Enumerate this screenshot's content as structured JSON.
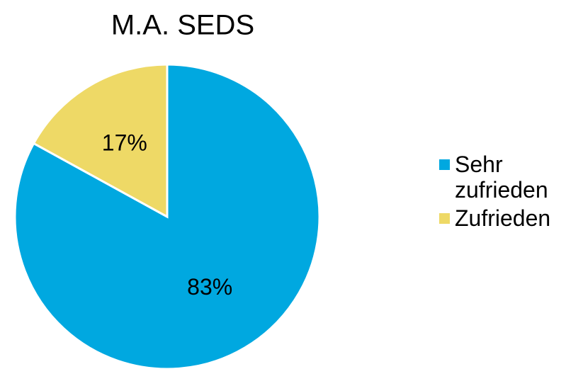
{
  "chart_data": {
    "type": "pie",
    "title": "M.A. SEDS",
    "categories": [
      "Sehr zufrieden",
      "Zufrieden"
    ],
    "values": [
      83,
      17
    ],
    "value_labels": [
      "83%",
      "17%"
    ],
    "colors": [
      "#00a8e0",
      "#eed966"
    ]
  }
}
